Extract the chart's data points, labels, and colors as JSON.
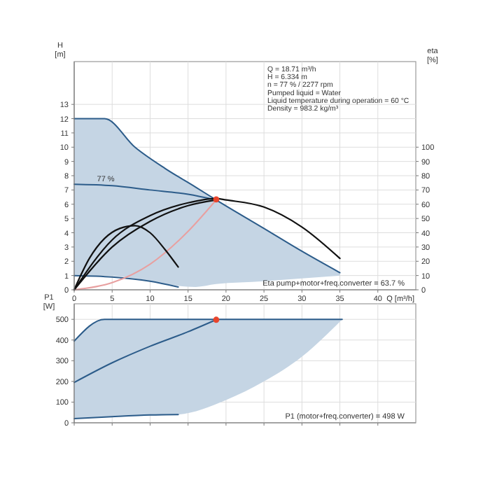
{
  "chart_data": [
    {
      "type": "line",
      "ylabel": "H\n[m]",
      "y2label": "eta\n[%]",
      "xlabel": "Q [m³/h]",
      "xlim": [
        0,
        45
      ],
      "xticks": [
        0,
        5,
        10,
        15,
        20,
        25,
        30,
        35,
        40
      ],
      "ylim": [
        0,
        16
      ],
      "yticks": [
        0,
        1,
        2,
        3,
        4,
        5,
        6,
        7,
        8,
        9,
        10,
        11,
        12,
        13
      ],
      "y2lim": [
        0,
        160
      ],
      "y2ticks": [
        0,
        10,
        20,
        30,
        40,
        50,
        60,
        70,
        80,
        90,
        100
      ],
      "grid": true,
      "series": [
        {
          "color": "#2c5c8a",
          "x": [
            0,
            4,
            8,
            12,
            16,
            18.7,
            25,
            30,
            35
          ],
          "values": [
            12,
            12,
            10,
            8.5,
            7.2,
            6.3,
            4.3,
            2.7,
            1.2
          ],
          "lower": [
            1,
            1,
            0.8,
            0.4,
            0.2,
            0.4,
            0.6,
            0.8,
            1.0
          ],
          "upper": [
            12,
            12,
            10,
            8.5,
            7.2,
            6.3,
            4.3,
            2.7,
            1.2
          ]
        },
        {
          "color": "#2c5c8a",
          "x": [
            0,
            5,
            10,
            15,
            18.7
          ],
          "values": [
            7.4,
            7.3,
            7.0,
            6.7,
            6.3
          ]
        },
        {
          "color": "#2c5c8a",
          "x": [
            0,
            5,
            10,
            13.7
          ],
          "values": [
            1,
            0.9,
            0.6,
            0.2
          ]
        },
        {
          "color": "#e8a0a0",
          "x": [
            0,
            5,
            10,
            15,
            18.7
          ],
          "values": [
            0,
            0.5,
            1.8,
            4.1,
            6.3
          ]
        },
        {
          "axis": "y2",
          "color": "#111111",
          "x": [
            0,
            5,
            10,
            15,
            18.7,
            20,
            25,
            30,
            35
          ],
          "values": [
            0,
            35,
            52,
            61,
            64,
            63,
            58,
            44,
            22
          ]
        },
        {
          "axis": "y2",
          "color": "#111111",
          "x": [
            0,
            5,
            10,
            15,
            18.7
          ],
          "values": [
            0,
            30,
            48,
            59,
            63
          ]
        },
        {
          "axis": "y2",
          "color": "#111111",
          "x": [
            0,
            2,
            4,
            6,
            8,
            10,
            12,
            13.7
          ],
          "values": [
            0,
            22,
            36,
            43,
            45,
            40,
            28,
            16
          ]
        },
        {
          "type": "scatter",
          "color": "#e8452c",
          "x": [
            18.71
          ],
          "values": [
            6.334
          ]
        }
      ],
      "annotations": [
        {
          "text": "77 %",
          "x": 3,
          "y": 7.4
        },
        "Q = 18.71 m³/h",
        "H = 6.334 m",
        "n = 77 % / 2277 rpm",
        "Pumped liquid = Water",
        "Liquid temperature during operation = 60 °C",
        "Density = 983.2 kg/m³",
        "Eta pump+motor+freq.converter = 63.7 %"
      ]
    },
    {
      "type": "line",
      "ylabel": "P1\n[W]",
      "xlim": [
        0,
        45
      ],
      "xticks": [
        0,
        5,
        10,
        15,
        20,
        25,
        30,
        35,
        40
      ],
      "ylim": [
        0,
        575
      ],
      "yticks": [
        0,
        100,
        200,
        300,
        400,
        500
      ],
      "grid": true,
      "tick_labels": "y",
      "series": [
        {
          "color": "#2c5c8a",
          "x": [
            0,
            4,
            13.7,
            20,
            25,
            30,
            35.3
          ],
          "values": [
            395,
            500,
            500,
            500,
            500,
            500,
            500
          ],
          "lower": [
            20,
            28,
            40,
            110,
            200,
            320,
            500
          ],
          "upper": [
            395,
            500,
            500,
            500,
            500,
            500,
            500
          ]
        },
        {
          "color": "#2c5c8a",
          "x": [
            0,
            5,
            10,
            15,
            18.7
          ],
          "values": [
            195,
            290,
            370,
            440,
            498
          ]
        },
        {
          "color": "#2c5c8a",
          "x": [
            0,
            5,
            10,
            13.7
          ],
          "values": [
            20,
            30,
            38,
            40
          ]
        },
        {
          "type": "scatter",
          "color": "#e8452c",
          "x": [
            18.71
          ],
          "values": [
            498
          ]
        }
      ],
      "annotations": [
        "P1 (motor+freq.converter) = 498 W"
      ]
    }
  ]
}
